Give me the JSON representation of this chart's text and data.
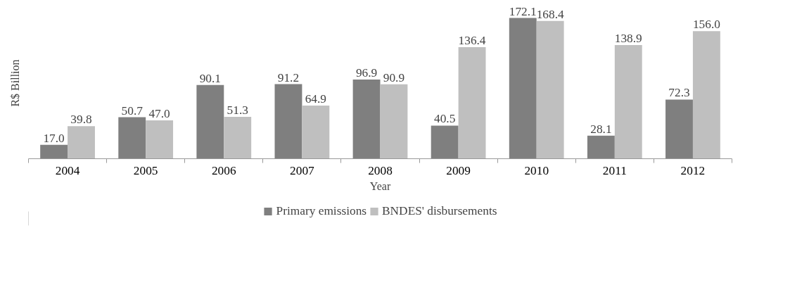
{
  "chart_data": {
    "type": "bar",
    "xlabel": "Year",
    "ylabel": "R$ Billion",
    "categories": [
      "2004",
      "2005",
      "2006",
      "2007",
      "2008",
      "2009",
      "2010",
      "2011",
      "2012"
    ],
    "series": [
      {
        "name": "Primary emissions",
        "color": "#7f7f7f",
        "values": [
          17.0,
          50.7,
          90.1,
          91.2,
          96.9,
          40.5,
          172.1,
          28.1,
          72.3
        ],
        "value_labels": [
          "17.0",
          "50.7",
          "90.1",
          "91.2",
          "96.9",
          "40.5",
          "172.1",
          "28.1",
          "72.3"
        ]
      },
      {
        "name": "BNDES' disbursements",
        "color": "#bfbfbf",
        "values": [
          39.8,
          47.0,
          51.3,
          64.9,
          90.9,
          136.4,
          168.4,
          138.9,
          156.0
        ],
        "value_labels": [
          "39.8",
          "47.0",
          "51.3",
          "64.9",
          "90.9",
          "136.4",
          "168.4",
          "138.9",
          "156.0"
        ]
      }
    ],
    "tick_labels": "x",
    "legend": "bottom"
  }
}
